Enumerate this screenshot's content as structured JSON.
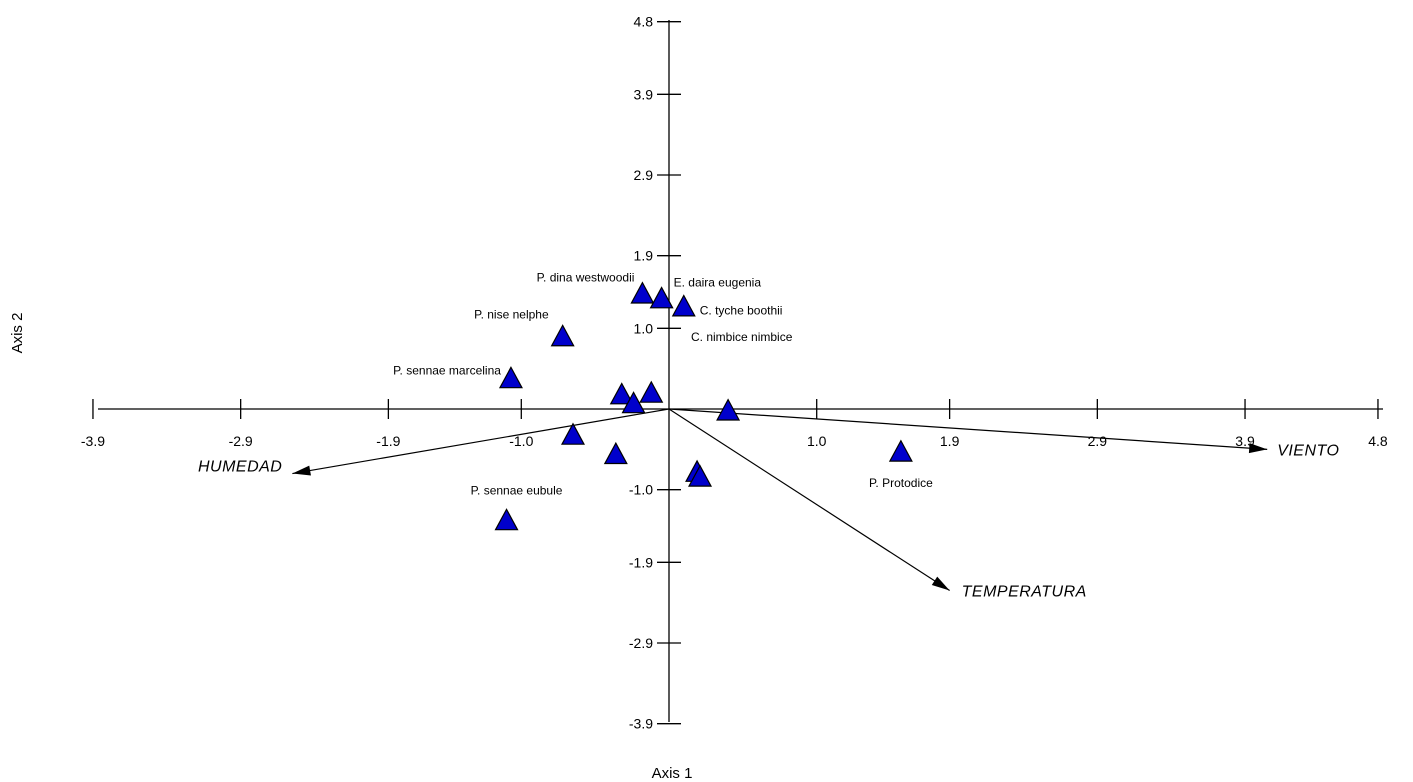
{
  "chart_data": {
    "type": "scatter",
    "xlabel": "Axis 1",
    "ylabel": "Axis 2",
    "xlim": [
      -3.9,
      4.8
    ],
    "ylim": [
      -3.9,
      4.8
    ],
    "x_ticks": [
      -3.9,
      -2.9,
      -1.9,
      -1.0,
      1.0,
      1.9,
      2.9,
      3.9,
      4.8
    ],
    "y_ticks": [
      4.8,
      3.9,
      2.9,
      1.9,
      1.0,
      -1.0,
      -1.9,
      -2.9,
      -3.9
    ],
    "x_tick_labels": [
      "-3.9",
      "-2.9",
      "-1.9",
      "-1.0",
      "1.0",
      "1.9",
      "2.9",
      "3.9",
      "4.8"
    ],
    "y_tick_labels": [
      "4.8",
      "3.9",
      "2.9",
      "1.9",
      "1.0",
      "-1.0",
      "-1.9",
      "-2.9",
      "-3.9"
    ],
    "marker_color": "#0000CC",
    "points": [
      {
        "x": -0.18,
        "y": 1.43,
        "label": "P. dina westwoodii"
      },
      {
        "x": -0.05,
        "y": 1.37,
        "label": "E. daira eugenia"
      },
      {
        "x": 0.1,
        "y": 1.27,
        "label": "C. tyche boothii"
      },
      {
        "x": -0.72,
        "y": 0.9,
        "label": "P. nise nelphe"
      },
      {
        "x": -1.07,
        "y": 0.38,
        "label": "P. sennae marcelina"
      },
      {
        "x": -1.1,
        "y": -1.38,
        "label": "P. sennae eubule"
      },
      {
        "x": 1.57,
        "y": -0.53,
        "label": "P. Protodice"
      },
      {
        "x": -0.32,
        "y": 0.18,
        "label": ""
      },
      {
        "x": -0.24,
        "y": 0.07,
        "label": ""
      },
      {
        "x": -0.12,
        "y": 0.2,
        "label": ""
      },
      {
        "x": 0.4,
        "y": -0.02,
        "label": ""
      },
      {
        "x": -0.65,
        "y": -0.32,
        "label": ""
      },
      {
        "x": -0.36,
        "y": -0.56,
        "label": ""
      },
      {
        "x": 0.19,
        "y": -0.78,
        "label": ""
      },
      {
        "x": 0.21,
        "y": -0.84,
        "label": ""
      }
    ],
    "vectors": [
      {
        "name": "VIENTO",
        "x": 4.05,
        "y": -0.5
      },
      {
        "name": "HUMEDAD",
        "x": -2.55,
        "y": -0.8
      },
      {
        "name": "TEMPERATURA",
        "x": 1.9,
        "y": -2.25
      }
    ],
    "annotations": [
      {
        "text": "C. nimbice nimbice"
      }
    ]
  }
}
